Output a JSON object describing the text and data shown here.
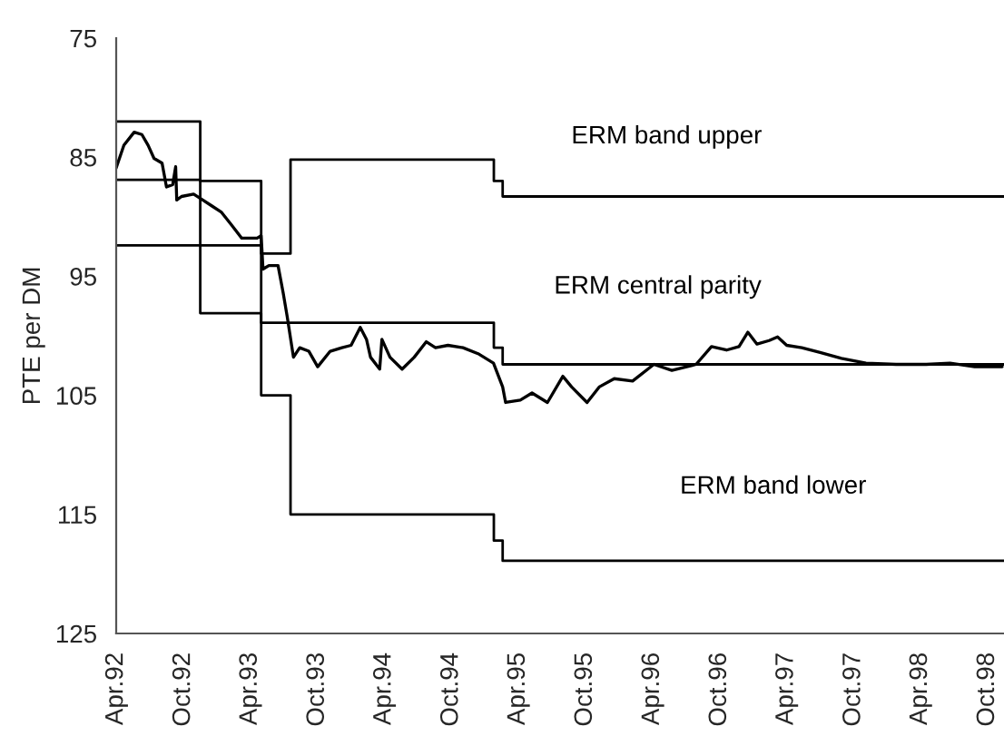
{
  "chart_data": {
    "type": "line",
    "ylabel": "PTE per DM",
    "ylim": [
      125,
      75
    ],
    "yticks": [
      75,
      85,
      95,
      105,
      115,
      125
    ],
    "xlim": [
      "1992-04-01",
      "1998-11-15"
    ],
    "xticks": [
      {
        "value": "1992-04-01",
        "label": "Apr.92"
      },
      {
        "value": "1992-10-01",
        "label": "Oct.92"
      },
      {
        "value": "1993-04-01",
        "label": "Apr.93"
      },
      {
        "value": "1993-10-01",
        "label": "Oct.93"
      },
      {
        "value": "1994-04-01",
        "label": "Apr.94"
      },
      {
        "value": "1994-10-01",
        "label": "Oct.94"
      },
      {
        "value": "1995-04-01",
        "label": "Apr.95"
      },
      {
        "value": "1995-10-01",
        "label": "Oct.95"
      },
      {
        "value": "1996-04-01",
        "label": "Apr.96"
      },
      {
        "value": "1996-10-01",
        "label": "Oct.96"
      },
      {
        "value": "1997-04-01",
        "label": "Apr.97"
      },
      {
        "value": "1997-10-01",
        "label": "Oct.97"
      },
      {
        "value": "1998-04-01",
        "label": "Apr.98"
      },
      {
        "value": "1998-10-01",
        "label": "Oct.98"
      }
    ],
    "grid": false,
    "legend": false,
    "series": [
      {
        "color": "#000000",
        "x": [
          "1992-04-01",
          "1992-04-22",
          "1992-05-20",
          "1992-06-10",
          "1992-06-27",
          "1992-07-13",
          "1992-08-04",
          "1992-08-16",
          "1992-09-02",
          "1992-09-10",
          "1992-09-13",
          "1992-09-26",
          "1992-10-29",
          "1992-11-23",
          "1992-12-18",
          "1993-01-12",
          "1993-02-07",
          "1993-03-09",
          "1993-04-20",
          "1993-05-01",
          "1993-05-06",
          "1993-05-22",
          "1993-06-16",
          "1993-06-30",
          "1993-07-11",
          "1993-07-23",
          "1993-07-28",
          "1993-08-14",
          "1993-09-08",
          "1993-10-02",
          "1993-11-05",
          "1993-12-07",
          "1994-01-01",
          "1994-01-26",
          "1994-02-12",
          "1994-02-23",
          "1994-03-20",
          "1994-03-26",
          "1994-04-17",
          "1994-05-20",
          "1994-06-22",
          "1994-07-25",
          "1994-08-19",
          "1994-09-22",
          "1994-11-02",
          "1994-12-13",
          "1995-01-24",
          "1995-02-18",
          "1995-02-26",
          "1995-04-07",
          "1995-05-09",
          "1995-06-20",
          "1995-08-01",
          "1995-08-25",
          "1995-10-06",
          "1995-11-08",
          "1995-12-19",
          "1996-02-07",
          "1996-04-05",
          "1996-05-24",
          "1996-07-29",
          "1996-09-09",
          "1996-10-20",
          "1996-11-23",
          "1996-12-17",
          "1997-01-11",
          "1997-02-13",
          "1997-03-08",
          "1997-04-02",
          "1997-05-13",
          "1997-07-02",
          "1997-08-29",
          "1997-11-04",
          "1998-01-25",
          "1998-04-17",
          "1998-06-21",
          "1998-08-27",
          "1998-11-10"
        ],
        "values": [
          85.9,
          84.0,
          82.9,
          83.1,
          84.0,
          85.1,
          85.5,
          87.5,
          87.3,
          85.8,
          88.6,
          88.3,
          88.1,
          88.6,
          89.1,
          89.6,
          90.6,
          91.8,
          91.8,
          91.6,
          94.4,
          94.1,
          94.1,
          96.4,
          98.4,
          100.8,
          101.8,
          101.0,
          101.3,
          102.6,
          101.3,
          101.0,
          100.8,
          99.3,
          100.3,
          101.8,
          102.8,
          100.3,
          101.8,
          102.8,
          101.8,
          100.5,
          101.0,
          100.8,
          101.0,
          101.5,
          102.3,
          104.3,
          105.6,
          105.4,
          104.8,
          105.6,
          103.4,
          104.3,
          105.6,
          104.3,
          103.6,
          103.8,
          102.4,
          102.9,
          102.4,
          100.9,
          101.2,
          100.9,
          99.7,
          100.7,
          100.4,
          100.1,
          100.8,
          101.0,
          101.4,
          101.9,
          102.3,
          102.4,
          102.4,
          102.3,
          102.6,
          102.6
        ]
      },
      {
        "type": "step",
        "name": "ERM band upper",
        "color": "#000000",
        "x": [
          "1992-04-01",
          "1992-11-16",
          "1993-05-01",
          "1993-07-20",
          "1995-01-25",
          "1995-02-18",
          "1998-11-15"
        ],
        "values": [
          82.0,
          87.0,
          93.1,
          85.2,
          87.0,
          88.3,
          88.3
        ]
      },
      {
        "type": "step",
        "name": "ERM central parity",
        "color": "#000000",
        "x": [
          "1992-04-01",
          "1992-11-16",
          "1993-05-01",
          "1995-01-25",
          "1995-02-18",
          "1998-11-15"
        ],
        "values": [
          86.9,
          92.4,
          98.9,
          101.0,
          102.4,
          102.4
        ]
      },
      {
        "type": "step",
        "name": "ERM band lower",
        "color": "#000000",
        "x": [
          "1992-04-01",
          "1992-11-16",
          "1993-05-01",
          "1993-07-20",
          "1995-01-25",
          "1995-02-18",
          "1998-11-15"
        ],
        "values": [
          92.4,
          98.1,
          105.0,
          115.0,
          117.2,
          118.9,
          118.9
        ]
      }
    ]
  }
}
